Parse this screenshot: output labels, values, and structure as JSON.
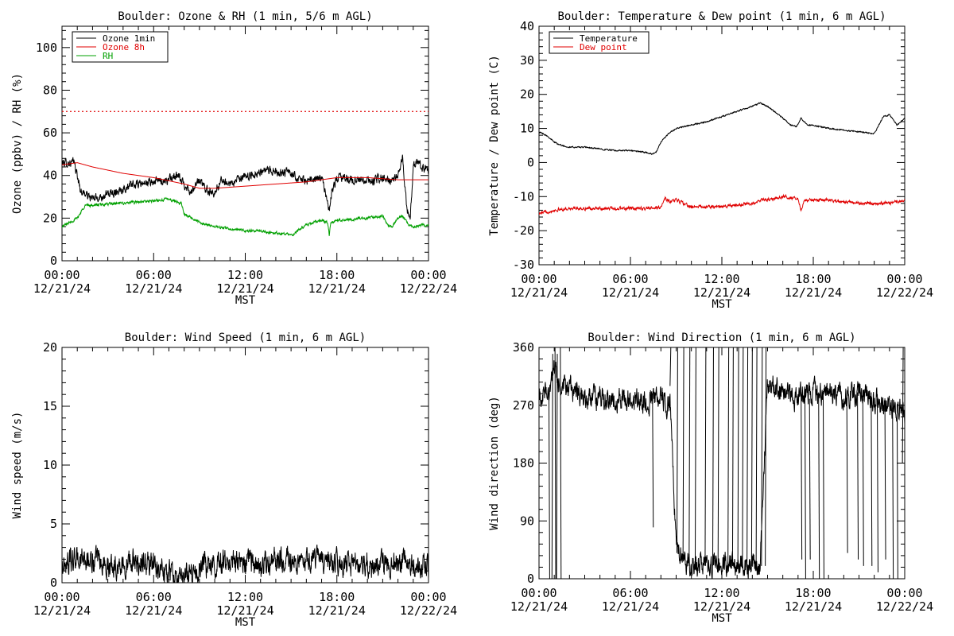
{
  "chart_data": [
    {
      "id": "ozone_rh",
      "type": "line",
      "title": "Boulder: Ozone & RH (1 min, 5/6 m AGL)",
      "ylabel": "Ozone (ppbv) / RH (%)",
      "xlabel": "MST",
      "ylim": [
        0,
        110
      ],
      "yticks": [
        0,
        20,
        40,
        60,
        80,
        100
      ],
      "xlim": [
        0,
        24
      ],
      "xticks": [
        {
          "time": "00:00",
          "date": "12/21/24"
        },
        {
          "time": "06:00",
          "date": "12/21/24"
        },
        {
          "time": "12:00",
          "date": "12/21/24"
        },
        {
          "time": "18:00",
          "date": "12/21/24"
        },
        {
          "time": "00:00",
          "date": "12/22/24"
        }
      ],
      "reference_line": {
        "y": 70,
        "color": "#e00000",
        "style": "dotted"
      },
      "legend_position": "top-left",
      "series": [
        {
          "name": "Ozone 1min",
          "color": "#000000",
          "noise": 1.6,
          "x": [
            0,
            0.8,
            1.0,
            1.2,
            2,
            3,
            4,
            5,
            6,
            7,
            7.5,
            8,
            8.5,
            9,
            9.5,
            10,
            10.5,
            11,
            11.5,
            12,
            13,
            14,
            15,
            16,
            17,
            17.3,
            17.5,
            17.7,
            18,
            19,
            20,
            21,
            21.5,
            22,
            22.3,
            22.6,
            22.8,
            23,
            23.3,
            23.6,
            24
          ],
          "y": [
            46,
            46,
            40,
            33,
            29,
            31,
            34,
            36,
            37,
            38,
            40,
            36,
            32,
            38,
            33,
            32,
            38,
            36,
            38,
            39,
            42,
            42,
            41,
            37,
            39,
            30,
            24,
            33,
            39,
            38,
            37,
            39,
            37,
            40,
            48,
            24,
            20,
            44,
            47,
            44,
            43
          ]
        },
        {
          "name": "Ozone 8h",
          "color": "#e00000",
          "noise": 0,
          "x": [
            0,
            1,
            2,
            4,
            6,
            8,
            9,
            10,
            12,
            14,
            16,
            18,
            20,
            22,
            24
          ],
          "y": [
            45,
            46,
            44,
            41,
            39,
            36,
            34,
            34,
            35,
            36,
            37,
            39,
            39,
            38,
            38
          ]
        },
        {
          "name": "RH",
          "color": "#00a000",
          "noise": 0.5,
          "x": [
            0,
            1,
            1.5,
            2,
            4,
            6,
            7,
            7.8,
            8,
            9,
            10,
            11,
            12,
            13,
            14,
            15,
            16,
            17,
            17.4,
            17.5,
            17.6,
            18,
            20,
            21,
            21.3,
            21.6,
            22,
            22.3,
            22.5,
            22.7,
            23,
            24
          ],
          "y": [
            16,
            20,
            26,
            26,
            27,
            28,
            29,
            27,
            22,
            18,
            16,
            15,
            14,
            14,
            13,
            12,
            17,
            19,
            18,
            12,
            18,
            19,
            20,
            21,
            17,
            16,
            20,
            21,
            19,
            17,
            16,
            17
          ]
        }
      ]
    },
    {
      "id": "temp_dew",
      "type": "line",
      "title": "Boulder: Temperature & Dew point (1 min, 6 m AGL)",
      "ylabel": "Temperature / Dew point (C)",
      "xlabel": "MST",
      "ylim": [
        -30,
        40
      ],
      "yticks": [
        -30,
        -20,
        -10,
        0,
        10,
        20,
        30,
        40
      ],
      "xlim": [
        0,
        24
      ],
      "xticks": [
        {
          "time": "00:00",
          "date": "12/21/24"
        },
        {
          "time": "06:00",
          "date": "12/21/24"
        },
        {
          "time": "12:00",
          "date": "12/21/24"
        },
        {
          "time": "18:00",
          "date": "12/21/24"
        },
        {
          "time": "00:00",
          "date": "12/22/24"
        }
      ],
      "legend_position": "top-left",
      "series": [
        {
          "name": "Temperature",
          "color": "#000000",
          "noise": 0.15,
          "x": [
            0,
            0.5,
            1,
            1.5,
            2,
            3,
            4,
            5,
            6,
            7,
            7.4,
            7.7,
            8,
            8.5,
            9,
            10,
            11,
            12,
            13,
            14,
            14.5,
            15,
            16,
            16.5,
            16.9,
            17.2,
            17.6,
            18,
            19,
            20,
            21,
            22,
            22.3,
            22.6,
            23,
            23.5,
            24
          ],
          "y": [
            9,
            8,
            6,
            5,
            4.5,
            4.5,
            4,
            3.5,
            3.5,
            3,
            2.5,
            3,
            6,
            8.5,
            10,
            11,
            12,
            13.5,
            15,
            16.5,
            17.5,
            16.5,
            13,
            11,
            10.5,
            13,
            11,
            11,
            10,
            9.5,
            9,
            8.5,
            11,
            13.5,
            14,
            11,
            13
          ]
        },
        {
          "name": "Dew point",
          "color": "#e00000",
          "noise": 0.35,
          "x": [
            0,
            1,
            2,
            4,
            6,
            7,
            7.5,
            8,
            8.3,
            8.6,
            9,
            10,
            11,
            12,
            13,
            14,
            14.5,
            15,
            16,
            17,
            17.2,
            17.4,
            17.6,
            18,
            19,
            20,
            21,
            22,
            23,
            24
          ],
          "y": [
            -15,
            -14,
            -13.5,
            -13.5,
            -13.5,
            -13.5,
            -13.5,
            -13,
            -10.5,
            -11.5,
            -11,
            -13,
            -13,
            -13,
            -12.5,
            -12,
            -11,
            -11,
            -10,
            -10.5,
            -14,
            -11,
            -11,
            -11,
            -11,
            -11.5,
            -12,
            -12,
            -12,
            -11
          ]
        }
      ]
    },
    {
      "id": "wind_speed",
      "type": "line",
      "title": "Boulder: Wind Speed (1 min, 6 m AGL)",
      "ylabel": "Wind speed (m/s)",
      "xlabel": "MST",
      "ylim": [
        0,
        20
      ],
      "yticks": [
        0,
        5,
        10,
        15,
        20
      ],
      "xlim": [
        0,
        24
      ],
      "xticks": [
        {
          "time": "00:00",
          "date": "12/21/24"
        },
        {
          "time": "06:00",
          "date": "12/21/24"
        },
        {
          "time": "12:00",
          "date": "12/21/24"
        },
        {
          "time": "18:00",
          "date": "12/21/24"
        },
        {
          "time": "00:00",
          "date": "12/22/24"
        }
      ],
      "series": [
        {
          "name": "",
          "color": "#000000",
          "noise": 0.8,
          "x": [
            0,
            1,
            2,
            3,
            4,
            5,
            6,
            7,
            7.5,
            8,
            9,
            10,
            11,
            12,
            13,
            14,
            15,
            16,
            17,
            18,
            19,
            20,
            21,
            22,
            23,
            24
          ],
          "y": [
            1.5,
            2,
            1.8,
            1.5,
            1.5,
            1.8,
            1.5,
            1,
            0.4,
            0.5,
            1.2,
            1.8,
            1.8,
            1.8,
            1.5,
            2,
            1.8,
            2,
            1.8,
            1.8,
            1.6,
            1.5,
            1.5,
            2,
            1.5,
            1.2
          ]
        }
      ]
    },
    {
      "id": "wind_dir",
      "type": "line",
      "title": "Boulder: Wind Direction (1 min, 6 m AGL)",
      "ylabel": "Wind direction (deg)",
      "xlabel": "MST",
      "ylim": [
        0,
        360
      ],
      "yticks": [
        0,
        90,
        180,
        270,
        360
      ],
      "xlim": [
        0,
        24
      ],
      "xticks": [
        {
          "time": "00:00",
          "date": "12/21/24"
        },
        {
          "time": "06:00",
          "date": "12/21/24"
        },
        {
          "time": "12:00",
          "date": "12/21/24"
        },
        {
          "time": "18:00",
          "date": "12/21/24"
        },
        {
          "time": "00:00",
          "date": "12/22/24"
        }
      ],
      "series": [
        {
          "name": "",
          "color": "#000000",
          "noise": 14,
          "x": [
            0,
            0.5,
            0.8,
            1,
            1.3,
            1.6,
            2,
            3,
            4,
            5,
            6,
            7,
            7.5,
            8,
            8.3,
            8.6,
            9,
            9.5,
            10,
            11,
            12,
            13,
            14,
            14.5,
            15,
            15.5,
            16,
            17,
            18,
            19,
            20,
            21,
            22,
            23,
            24
          ],
          "y": [
            280,
            290,
            300,
            330,
            300,
            290,
            300,
            280,
            280,
            280,
            280,
            275,
            280,
            280,
            275,
            270,
            60,
            30,
            20,
            20,
            25,
            20,
            20,
            20,
            300,
            300,
            295,
            280,
            290,
            290,
            280,
            290,
            280,
            270,
            260
          ]
        },
        {
          "name": "",
          "color": "#000000",
          "noise": 0,
          "segments": [
            [
              [
                0.65,
                290
              ],
              [
                0.7,
                0
              ]
            ],
            [
              [
                0.85,
                0
              ],
              [
                0.9,
                350
              ]
            ],
            [
              [
                1.05,
                360
              ],
              [
                1.1,
                0
              ]
            ],
            [
              [
                1.15,
                0
              ],
              [
                1.2,
                350
              ]
            ],
            [
              [
                1.4,
                360
              ],
              [
                1.45,
                0
              ]
            ],
            [
              [
                7.45,
                280
              ],
              [
                7.5,
                80
              ]
            ],
            [
              [
                8.6,
                300
              ],
              [
                8.65,
                360
              ]
            ],
            [
              [
                9.05,
                40
              ],
              [
                9.1,
                360
              ]
            ],
            [
              [
                9.45,
                30
              ],
              [
                9.5,
                360
              ]
            ],
            [
              [
                9.85,
                20
              ],
              [
                9.9,
                360
              ]
            ],
            [
              [
                10.25,
                20
              ],
              [
                10.3,
                360
              ]
            ],
            [
              [
                10.9,
                20
              ],
              [
                10.95,
                360
              ]
            ],
            [
              [
                11.4,
                20
              ],
              [
                11.45,
                360
              ]
            ],
            [
              [
                11.75,
                20
              ],
              [
                11.8,
                360
              ]
            ],
            [
              [
                12.4,
                20
              ],
              [
                12.45,
                360
              ]
            ],
            [
              [
                12.7,
                20
              ],
              [
                12.75,
                360
              ]
            ],
            [
              [
                13.05,
                20
              ],
              [
                13.1,
                360
              ]
            ],
            [
              [
                13.35,
                20
              ],
              [
                13.4,
                360
              ]
            ],
            [
              [
                13.65,
                20
              ],
              [
                13.7,
                360
              ]
            ],
            [
              [
                13.95,
                20
              ],
              [
                14.0,
                360
              ]
            ],
            [
              [
                14.25,
                20
              ],
              [
                14.3,
                360
              ]
            ],
            [
              [
                14.6,
                20
              ],
              [
                14.65,
                360
              ]
            ],
            [
              [
                14.85,
                20
              ],
              [
                14.9,
                360
              ]
            ],
            [
              [
                17.2,
                290
              ],
              [
                17.25,
                30
              ]
            ],
            [
              [
                17.45,
                290
              ],
              [
                17.5,
                0
              ]
            ],
            [
              [
                17.75,
                280
              ],
              [
                17.8,
                30
              ]
            ],
            [
              [
                18.35,
                290
              ],
              [
                18.4,
                0
              ]
            ],
            [
              [
                18.65,
                290
              ],
              [
                18.7,
                0
              ]
            ],
            [
              [
                20.2,
                280
              ],
              [
                20.25,
                40
              ]
            ],
            [
              [
                20.9,
                290
              ],
              [
                20.95,
                30
              ]
            ],
            [
              [
                21.25,
                280
              ],
              [
                21.3,
                20
              ]
            ],
            [
              [
                21.8,
                290
              ],
              [
                21.85,
                20
              ]
            ],
            [
              [
                22.2,
                280
              ],
              [
                22.25,
                10
              ]
            ],
            [
              [
                22.7,
                270
              ],
              [
                22.75,
                30
              ]
            ],
            [
              [
                23.2,
                280
              ],
              [
                23.25,
                0
              ]
            ],
            [
              [
                23.5,
                270
              ],
              [
                23.55,
                0
              ]
            ],
            [
              [
                23.85,
                180
              ],
              [
                23.9,
                360
              ]
            ]
          ]
        }
      ]
    }
  ]
}
